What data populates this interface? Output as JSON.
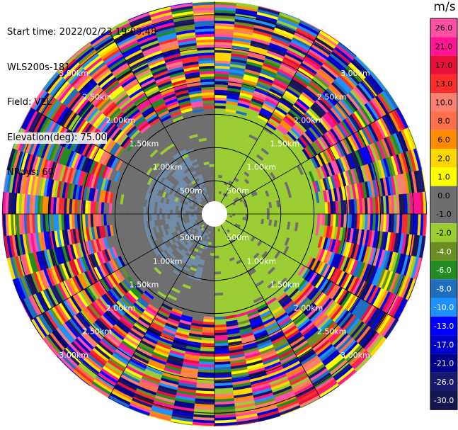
{
  "header": {
    "start_time": "Start time: 2022/02/23 19:00:48",
    "instrument": "WLS200s-181",
    "field": "Field: VEL",
    "elevation": "Elevation(deg): 75.00",
    "nrays": "NRays: 60"
  },
  "colorbar": {
    "unit": "m/s",
    "ticks": [
      "26.0",
      "21.0",
      "17.0",
      "13.0",
      "10.0",
      "8.0",
      "6.0",
      "2.0",
      "1.0",
      "0.0",
      "-1.0",
      "-2.0",
      "-4.0",
      "-6.0",
      "-8.0",
      "-10.0",
      "-13.0",
      "-17.0",
      "-21.0",
      "-26.0",
      "-30.0"
    ],
    "colors": [
      "#ff4fa7",
      "#ff1493",
      "#e8103a",
      "#ff2a2a",
      "#fa8072",
      "#ff6f4a",
      "#ff8c00",
      "#ffd700",
      "#ffff00",
      "#6e6e6e",
      "#6e6e6e",
      "#9acd32",
      "#6b8e23",
      "#228b22",
      "#1e6ebd",
      "#1e90ff",
      "#0000ff",
      "#0000cd",
      "#00008b",
      "#191970",
      "#161650"
    ]
  },
  "chart_data": {
    "type": "heatmap",
    "title": "",
    "subtitle": "",
    "projection": "polar PPI",
    "nrays": 60,
    "range_rings": [
      "500m",
      "1.00km",
      "1.50km",
      "2.00km",
      "2.50km",
      "3.00km"
    ],
    "range_rings_m": [
      500,
      1000,
      1500,
      2000,
      2500,
      3000
    ],
    "max_range_m": 3200,
    "near_field_description": "inside ~1.5 km: east half mostly -2.0 (light green), west half mostly 0.0 (gray) with -10.0 (slate blue) patches",
    "far_field_description": "beyond ~1.6 km: noisy mixture of all colorbar classes",
    "grid": true
  }
}
